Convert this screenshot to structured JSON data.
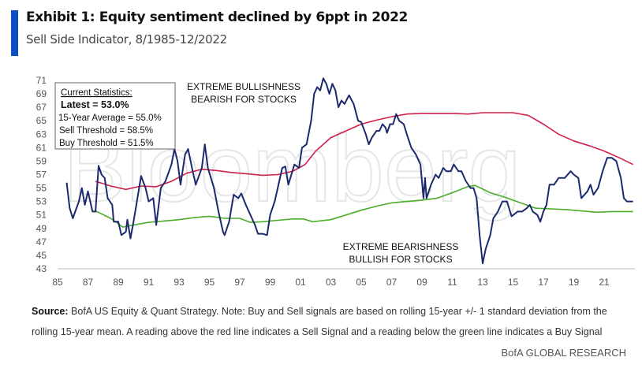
{
  "header": {
    "title": "Exhibit 1: Equity sentiment declined by 6ppt in 2022",
    "subtitle": "Sell Side Indicator, 8/1985-12/2022"
  },
  "stats_box": {
    "heading": "Current Statistics:",
    "latest": "Latest = 53.0%",
    "avg": "15-Year Average = 55.0%",
    "sell": "Sell Threshold = 58.5%",
    "buy": "Buy Threshold = 51.5%"
  },
  "annotations": {
    "top1": "EXTREME BULLISHNESS",
    "top2": "BEARISH FOR STOCKS",
    "bottom1": "EXTREME BEARISHNESS",
    "bottom2": "BULLISH FOR STOCKS"
  },
  "watermark": "Bloomberg",
  "footer": {
    "source_label": "Source:",
    "source_line1": "BofA US Equity & Quant Strategy. Note: Buy and Sell signals are based on rolling 15-year +/- 1 standard deviation from the",
    "source_line2": "rolling 15-year mean. A reading above the red line indicates a Sell Signal and a reading below the green line indicates a Buy Signal",
    "brand": "BofA GLOBAL RESEARCH"
  },
  "colors": {
    "indicator": "#1a2a6c",
    "sell": "#d0204a",
    "buy": "#4aae2a",
    "accent": "#0a4fc4"
  },
  "chart_data": {
    "type": "line",
    "xlim": [
      1985,
      2023
    ],
    "ylim": [
      43,
      71
    ],
    "yticks": [
      43,
      45,
      47,
      49,
      51,
      53,
      55,
      57,
      59,
      61,
      63,
      65,
      67,
      69,
      71
    ],
    "xtick_values": [
      1985,
      1987,
      1989,
      1991,
      1993,
      1995,
      1997,
      1999,
      2001,
      2003,
      2005,
      2007,
      2009,
      2011,
      2013,
      2015,
      2017,
      2019,
      2021
    ],
    "xtick_labels": [
      "85",
      "87",
      "89",
      "91",
      "93",
      "95",
      "97",
      "99",
      "01",
      "03",
      "05",
      "07",
      "09",
      "11",
      "13",
      "15",
      "17",
      "19",
      "21"
    ],
    "grid": false,
    "series": [
      {
        "key": "indicator",
        "points": [
          [
            1985.6,
            55.8
          ],
          [
            1985.8,
            52
          ],
          [
            1986.0,
            50.5
          ],
          [
            1986.4,
            53
          ],
          [
            1986.6,
            55
          ],
          [
            1986.8,
            52.5
          ],
          [
            1987.0,
            54.5
          ],
          [
            1987.3,
            51.5
          ],
          [
            1987.5,
            51.5
          ],
          [
            1987.7,
            58.3
          ],
          [
            1987.9,
            57
          ],
          [
            1988.1,
            56.5
          ],
          [
            1988.3,
            53.5
          ],
          [
            1988.6,
            52.5
          ],
          [
            1988.7,
            50
          ],
          [
            1989.0,
            50
          ],
          [
            1989.2,
            48
          ],
          [
            1989.5,
            48.5
          ],
          [
            1989.6,
            50.3
          ],
          [
            1989.8,
            47.5
          ],
          [
            1990.0,
            50
          ],
          [
            1990.3,
            54
          ],
          [
            1990.5,
            56.8
          ],
          [
            1990.8,
            55
          ],
          [
            1991.0,
            53
          ],
          [
            1991.3,
            53.5
          ],
          [
            1991.5,
            49.5
          ],
          [
            1991.8,
            55
          ],
          [
            1992.1,
            56
          ],
          [
            1992.5,
            58.5
          ],
          [
            1992.7,
            60.8
          ],
          [
            1992.9,
            59
          ],
          [
            1993.1,
            55.5
          ],
          [
            1993.4,
            60
          ],
          [
            1993.6,
            60.8
          ],
          [
            1993.9,
            57.5
          ],
          [
            1994.1,
            55.5
          ],
          [
            1994.5,
            58
          ],
          [
            1994.7,
            61.5
          ],
          [
            1994.9,
            58
          ],
          [
            1995.3,
            55
          ],
          [
            1995.6,
            51.5
          ],
          [
            1995.9,
            48.5
          ],
          [
            1996.0,
            48
          ],
          [
            1996.3,
            50
          ],
          [
            1996.6,
            54
          ],
          [
            1996.9,
            53.5
          ],
          [
            1997.1,
            54.2
          ],
          [
            1997.4,
            52.5
          ],
          [
            1997.7,
            51
          ],
          [
            1998.0,
            49.5
          ],
          [
            1998.2,
            48.2
          ],
          [
            1998.5,
            48.2
          ],
          [
            1998.8,
            48
          ],
          [
            1999.0,
            51
          ],
          [
            1999.3,
            53
          ],
          [
            1999.5,
            55
          ],
          [
            1999.8,
            58
          ],
          [
            2000.0,
            58.2
          ],
          [
            2000.2,
            55.5
          ],
          [
            2000.6,
            58.5
          ],
          [
            2000.9,
            58
          ],
          [
            2001.1,
            61
          ],
          [
            2001.4,
            61.5
          ],
          [
            2001.7,
            65
          ],
          [
            2001.9,
            69
          ],
          [
            2002.1,
            70
          ],
          [
            2002.3,
            69.5
          ],
          [
            2002.5,
            71.3
          ],
          [
            2002.7,
            70.5
          ],
          [
            2002.9,
            69
          ],
          [
            2003.1,
            70.5
          ],
          [
            2003.3,
            69.5
          ],
          [
            2003.5,
            67
          ],
          [
            2003.7,
            68
          ],
          [
            2003.9,
            67.5
          ],
          [
            2004.2,
            68.8
          ],
          [
            2004.5,
            67.5
          ],
          [
            2004.8,
            65
          ],
          [
            2005.0,
            64.8
          ],
          [
            2005.3,
            63
          ],
          [
            2005.5,
            61.5
          ],
          [
            2005.7,
            62.5
          ],
          [
            2006.0,
            63.5
          ],
          [
            2006.2,
            63.5
          ],
          [
            2006.4,
            64.5
          ],
          [
            2006.6,
            64
          ],
          [
            2006.7,
            63.2
          ],
          [
            2006.9,
            64.5
          ],
          [
            2007.1,
            64.5
          ],
          [
            2007.3,
            66
          ],
          [
            2007.5,
            65
          ],
          [
            2007.8,
            64.5
          ],
          [
            2008.0,
            63
          ],
          [
            2008.3,
            61
          ],
          [
            2008.6,
            60
          ],
          [
            2008.9,
            58.5
          ],
          [
            2009.1,
            53.5
          ],
          [
            2009.2,
            56.5
          ],
          [
            2009.3,
            53.5
          ],
          [
            2009.6,
            55.5
          ],
          [
            2009.9,
            57
          ],
          [
            2010.1,
            56.5
          ],
          [
            2010.4,
            58
          ],
          [
            2010.6,
            57.5
          ],
          [
            2010.9,
            57.5
          ],
          [
            2011.1,
            58.5
          ],
          [
            2011.4,
            57.5
          ],
          [
            2011.6,
            57.5
          ],
          [
            2011.9,
            56
          ],
          [
            2012.2,
            55
          ],
          [
            2012.4,
            55
          ],
          [
            2012.6,
            53.5
          ],
          [
            2012.8,
            48
          ],
          [
            2013.0,
            43.8
          ],
          [
            2013.2,
            46
          ],
          [
            2013.5,
            48
          ],
          [
            2013.7,
            50.5
          ],
          [
            2014.0,
            51.5
          ],
          [
            2014.3,
            53
          ],
          [
            2014.6,
            53
          ],
          [
            2014.9,
            50.8
          ],
          [
            2015.3,
            51.5
          ],
          [
            2015.6,
            51.5
          ],
          [
            2015.9,
            52
          ],
          [
            2016.1,
            52.5
          ],
          [
            2016.3,
            51.5
          ],
          [
            2016.6,
            51
          ],
          [
            2016.8,
            50
          ],
          [
            2017.0,
            51.5
          ],
          [
            2017.2,
            52.5
          ],
          [
            2017.4,
            55.5
          ],
          [
            2017.7,
            55.5
          ],
          [
            2018.0,
            56.5
          ],
          [
            2018.4,
            56.5
          ],
          [
            2018.8,
            57.5
          ],
          [
            2019.0,
            57
          ],
          [
            2019.3,
            56.5
          ],
          [
            2019.5,
            53.5
          ],
          [
            2019.9,
            54.5
          ],
          [
            2020.1,
            55.5
          ],
          [
            2020.3,
            54
          ],
          [
            2020.6,
            55
          ],
          [
            2020.9,
            57.5
          ],
          [
            2021.2,
            59.5
          ],
          [
            2021.5,
            59.5
          ],
          [
            2021.8,
            59
          ],
          [
            2022.1,
            56.5
          ],
          [
            2022.3,
            53.5
          ],
          [
            2022.5,
            53
          ],
          [
            2022.7,
            53
          ],
          [
            2022.9,
            53
          ]
        ]
      },
      {
        "key": "sell",
        "points": [
          [
            1987.5,
            56
          ],
          [
            1988.5,
            55.3
          ],
          [
            1989.5,
            54.8
          ],
          [
            1990.5,
            55.3
          ],
          [
            1991.5,
            55.2
          ],
          [
            1992.5,
            56
          ],
          [
            1993.5,
            57.2
          ],
          [
            1994.5,
            57.8
          ],
          [
            1995.5,
            57.6
          ],
          [
            1996.5,
            57.3
          ],
          [
            1997.5,
            57.1
          ],
          [
            1998.5,
            56.9
          ],
          [
            1999.5,
            57
          ],
          [
            2000.5,
            57.5
          ],
          [
            2001.3,
            58.5
          ],
          [
            2002,
            60.5
          ],
          [
            2003,
            62.5
          ],
          [
            2004,
            63.5
          ],
          [
            2005,
            64.5
          ],
          [
            2006,
            65.1
          ],
          [
            2007,
            65.6
          ],
          [
            2008,
            66
          ],
          [
            2009,
            66.1
          ],
          [
            2010,
            66.1
          ],
          [
            2011,
            66.1
          ],
          [
            2012,
            66
          ],
          [
            2013,
            66.2
          ],
          [
            2014,
            66.2
          ],
          [
            2015,
            66.2
          ],
          [
            2016,
            65.8
          ],
          [
            2017,
            64.5
          ],
          [
            2018,
            63
          ],
          [
            2019,
            62
          ],
          [
            2020,
            61.3
          ],
          [
            2021,
            60.5
          ],
          [
            2022,
            59.5
          ],
          [
            2022.9,
            58.5
          ]
        ]
      },
      {
        "key": "buy",
        "points": [
          [
            1987.5,
            51.6
          ],
          [
            1988.5,
            50.5
          ],
          [
            1989.3,
            49.2
          ],
          [
            1990,
            49.5
          ],
          [
            1991,
            49.9
          ],
          [
            1992,
            50.1
          ],
          [
            1993,
            50.3
          ],
          [
            1994,
            50.6
          ],
          [
            1995,
            50.8
          ],
          [
            1996,
            50.5
          ],
          [
            1997,
            50.5
          ],
          [
            1997.7,
            49.9
          ],
          [
            1998.5,
            50
          ],
          [
            1999.5,
            50.2
          ],
          [
            2000.5,
            50.4
          ],
          [
            2001.2,
            50.4
          ],
          [
            2001.8,
            50
          ],
          [
            2003,
            50.3
          ],
          [
            2004,
            51
          ],
          [
            2005,
            51.7
          ],
          [
            2006,
            52.3
          ],
          [
            2007,
            52.8
          ],
          [
            2008,
            53
          ],
          [
            2009,
            53.2
          ],
          [
            2010,
            53.5
          ],
          [
            2011,
            54.3
          ],
          [
            2012,
            55.2
          ],
          [
            2012.5,
            55.4
          ],
          [
            2013.5,
            54.3
          ],
          [
            2014.5,
            53.6
          ],
          [
            2015.5,
            52.8
          ],
          [
            2016.5,
            52
          ],
          [
            2017.5,
            51.9
          ],
          [
            2018.5,
            51.8
          ],
          [
            2019.5,
            51.6
          ],
          [
            2020.5,
            51.4
          ],
          [
            2021.5,
            51.5
          ],
          [
            2022.9,
            51.5
          ]
        ]
      }
    ]
  }
}
